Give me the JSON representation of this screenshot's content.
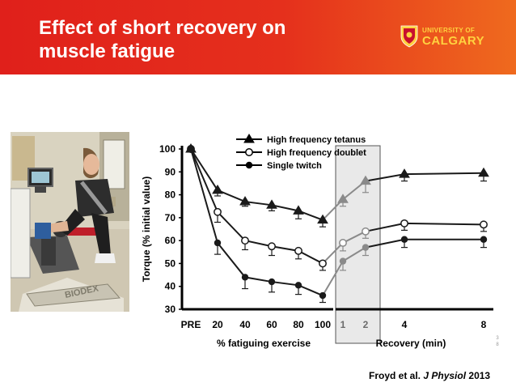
{
  "slide": {
    "title_line1": "Effect of short recovery on",
    "title_line2": "muscle fatigue",
    "logo_line1": "UNIVERSITY OF",
    "logo_line2": "CALGARY",
    "citation_authors": "Froyd et al.",
    "citation_journal": "J Physiol",
    "citation_year": "2013",
    "page_number": "3 8",
    "photo_label": "BIODEX"
  },
  "chart_data": {
    "type": "line",
    "ylabel": "Torque (% initial value)",
    "xlabel_left": "% fatiguing exercise",
    "xlabel_right": "Recovery (min)",
    "ylim": [
      30,
      100
    ],
    "yticks": [
      30,
      40,
      50,
      60,
      70,
      80,
      90,
      100
    ],
    "x_ticks_left": [
      "PRE",
      "20",
      "40",
      "60",
      "80",
      "100"
    ],
    "x_ticks_right": [
      "1",
      "2",
      "4",
      "8"
    ],
    "series": [
      {
        "name": "High frequency tetanus",
        "marker": "triangle",
        "fatigue": [
          100,
          82,
          77,
          75.5,
          73,
          69
        ],
        "recovery": [
          78,
          86,
          89,
          89.5
        ],
        "fatigue_err": [
          0,
          2.5,
          2,
          2.5,
          3.5,
          3
        ],
        "recovery_err": [
          3,
          5,
          3,
          3.5
        ]
      },
      {
        "name": "High frequency doublet",
        "marker": "open-circle",
        "fatigue": [
          100,
          72.5,
          60,
          57.5,
          55.5,
          50
        ],
        "recovery": [
          59,
          64,
          67.5,
          67
        ],
        "fatigue_err": [
          0,
          4.5,
          4,
          4,
          3.5,
          3
        ],
        "recovery_err": [
          3.5,
          3,
          3,
          3
        ]
      },
      {
        "name": "Single twitch",
        "marker": "filled-circle",
        "fatigue": [
          100,
          59,
          44,
          42,
          40.5,
          36
        ],
        "recovery": [
          51,
          57,
          60.5,
          60.5
        ],
        "fatigue_err": [
          0,
          5,
          5,
          4.5,
          4,
          3
        ],
        "recovery_err": [
          4,
          3.5,
          3.5,
          3.5
        ]
      }
    ]
  }
}
